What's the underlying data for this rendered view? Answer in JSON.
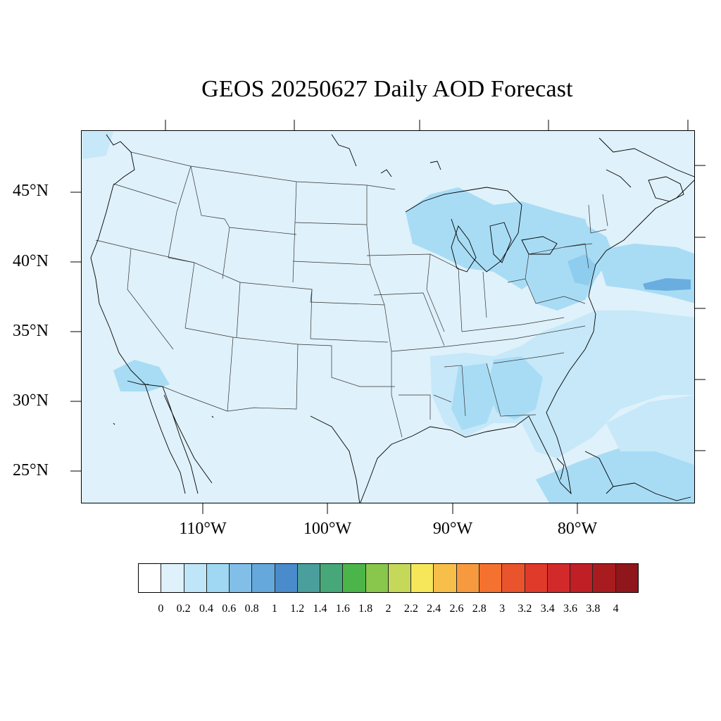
{
  "title": "GEOS 20250627 Daily AOD Forecast",
  "lat_labels": [
    "45°N",
    "40°N",
    "35°N",
    "30°N",
    "25°N"
  ],
  "lon_labels": [
    "110°W",
    "100°W",
    "90°W",
    "80°W"
  ],
  "colorbar": {
    "levels": [
      "0",
      "0.2",
      "0.4",
      "0.6",
      "0.8",
      "1",
      "1.2",
      "1.4",
      "1.6",
      "1.8",
      "2",
      "2.2",
      "2.4",
      "2.6",
      "2.8",
      "3",
      "3.2",
      "3.4",
      "3.6",
      "3.8",
      "4"
    ],
    "colors": [
      "#ffffff",
      "#dff1fa",
      "#bfe6f8",
      "#a0d8f3",
      "#81bfe8",
      "#65a8dc",
      "#4a8bcb",
      "#4a9e9c",
      "#46a878",
      "#4bb549",
      "#88c74c",
      "#c5d85a",
      "#f6e65a",
      "#f7bf4a",
      "#f79a3f",
      "#f4712f",
      "#ea542c",
      "#e03a2a",
      "#d22a2b",
      "#bf1f25",
      "#a81c1f",
      "#8f161b"
    ]
  },
  "colors": {
    "background": "#dff1fa",
    "aod_low": "#c6e8f9",
    "aod_mid": "#a8dcf5",
    "aod_high": "#8fcdee",
    "aod_peak": "#6aaee0",
    "borders": "#333333",
    "coast": "#000000"
  }
}
